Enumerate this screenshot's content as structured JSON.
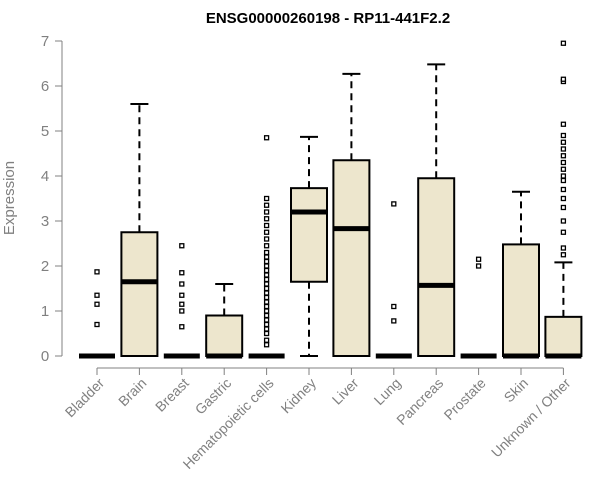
{
  "chart_data": {
    "type": "boxplot",
    "title": "ENSG00000260198 - RP11-441F2.2",
    "ylabel": "Expression",
    "xlabel": "",
    "ylim": [
      0,
      7
    ],
    "yticks": [
      0,
      1,
      2,
      3,
      4,
      5,
      6,
      7
    ],
    "grid": false,
    "box_fill": "#ede6cd",
    "categories": [
      "Bladder",
      "Brain",
      "Breast",
      "Gastric",
      "Hematopoietic cells",
      "Kidney",
      "Liver",
      "Lung",
      "Pancreas",
      "Prostate",
      "Skin",
      "Unknown / Other"
    ],
    "boxes": [
      {
        "min": 0,
        "q1": 0,
        "median": 0,
        "q3": 0,
        "max": 0,
        "outliers": [
          0.7,
          1.15,
          1.35,
          1.87
        ]
      },
      {
        "min": 0,
        "q1": 0,
        "median": 1.65,
        "q3": 2.75,
        "max": 5.6,
        "outliers": []
      },
      {
        "min": 0,
        "q1": 0,
        "median": 0,
        "q3": 0,
        "max": 0,
        "outliers": [
          0.65,
          1.0,
          1.15,
          1.35,
          1.6,
          1.85,
          2.45
        ]
      },
      {
        "min": 0,
        "q1": 0,
        "median": 0,
        "q3": 0.9,
        "max": 1.6,
        "outliers": []
      },
      {
        "min": 0,
        "q1": 0,
        "median": 0,
        "q3": 0,
        "max": 0,
        "outliers": [
          0.25,
          0.35,
          0.5,
          0.6,
          0.7,
          0.8,
          0.9,
          1.0,
          1.1,
          1.2,
          1.3,
          1.4,
          1.5,
          1.6,
          1.7,
          1.8,
          1.9,
          2.0,
          2.1,
          2.2,
          2.3,
          2.45,
          2.6,
          2.75,
          2.9,
          3.05,
          3.2,
          3.35,
          3.5,
          4.85
        ]
      },
      {
        "min": 0,
        "q1": 1.65,
        "median": 3.2,
        "q3": 3.73,
        "max": 4.87,
        "outliers": []
      },
      {
        "min": 0,
        "q1": 0,
        "median": 2.83,
        "q3": 4.35,
        "max": 6.27,
        "outliers": []
      },
      {
        "min": 0,
        "q1": 0,
        "median": 0,
        "q3": 0,
        "max": 0,
        "outliers": [
          0.78,
          1.1,
          3.38
        ]
      },
      {
        "min": 0,
        "q1": 0,
        "median": 1.57,
        "q3": 3.95,
        "max": 6.48,
        "outliers": []
      },
      {
        "min": 0,
        "q1": 0,
        "median": 0,
        "q3": 0,
        "max": 0,
        "outliers": [
          2.0,
          2.15
        ]
      },
      {
        "min": 0,
        "q1": 0,
        "median": 0,
        "q3": 2.48,
        "max": 3.65,
        "outliers": []
      },
      {
        "min": 0,
        "q1": 0,
        "median": 0,
        "q3": 0.87,
        "max": 2.08,
        "outliers": [
          2.25,
          2.4,
          2.75,
          3.0,
          3.3,
          3.5,
          3.7,
          3.9,
          4.0,
          4.15,
          4.3,
          4.45,
          4.6,
          4.75,
          4.9,
          5.15,
          6.1,
          6.15,
          6.95
        ]
      }
    ]
  }
}
